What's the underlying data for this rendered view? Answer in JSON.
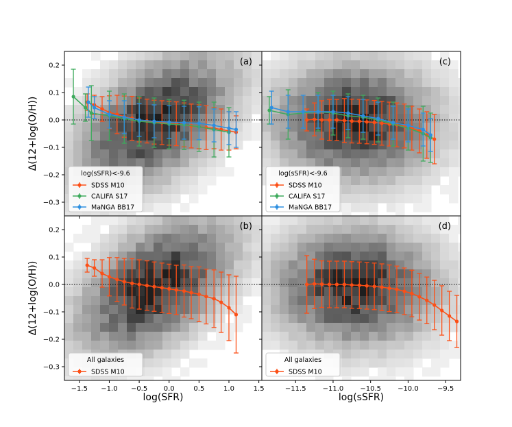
{
  "figure": {
    "ylabel": "Δ(12+log(O/H))",
    "xlabel_left": "log(SFR)",
    "xlabel_right": "log(sSFR)"
  },
  "colors": {
    "sdss": "#fc4f16",
    "califa": "#3daa5c",
    "manga": "#2d8fe0",
    "zero_line": "#000000"
  },
  "chart_data": [
    {
      "type": "scatter",
      "panel": "a",
      "panel_label": "(a)",
      "xlim": [
        -1.75,
        1.55
      ],
      "ylim": [
        -0.35,
        0.25
      ],
      "legend_title": "log(sSFR)<-9.6",
      "series": [
        {
          "name": "SDSS M10",
          "x": [
            -1.37,
            -1.25,
            -1.12,
            -1.0,
            -0.87,
            -0.75,
            -0.62,
            -0.5,
            -0.37,
            -0.25,
            -0.12,
            0.0,
            0.12,
            0.25,
            0.37,
            0.5,
            0.62,
            0.75,
            0.87,
            1.0,
            1.12
          ],
          "y": [
            0.065,
            0.055,
            0.04,
            0.028,
            0.02,
            0.012,
            0.006,
            0.0,
            -0.004,
            -0.008,
            -0.01,
            -0.012,
            -0.014,
            -0.018,
            -0.022,
            -0.025,
            -0.028,
            -0.03,
            -0.035,
            -0.04,
            -0.045
          ],
          "err": [
            0.03,
            0.035,
            0.045,
            0.06,
            0.07,
            0.075,
            0.08,
            0.08,
            0.08,
            0.08,
            0.08,
            0.08,
            0.08,
            0.08,
            0.08,
            0.08,
            0.08,
            0.075,
            0.075,
            0.07,
            0.06
          ]
        },
        {
          "name": "CALIFA S17",
          "x": [
            -1.6,
            -1.4,
            -1.3,
            -1.0,
            -0.75,
            -0.5,
            -0.25,
            0.0,
            0.25,
            0.5,
            0.75,
            1.0
          ],
          "y": [
            0.085,
            0.045,
            0.025,
            0.015,
            0.005,
            -0.005,
            -0.01,
            -0.015,
            -0.018,
            -0.025,
            -0.035,
            -0.045
          ],
          "err": [
            0.1,
            0.05,
            0.1,
            0.09,
            0.09,
            0.09,
            0.09,
            0.09,
            0.09,
            0.09,
            0.1,
            0.09
          ]
        },
        {
          "name": "MaNGA BB17",
          "x": [
            -1.35,
            -1.25,
            -1.0,
            -0.75,
            -0.5,
            -0.25,
            0.0,
            0.25,
            0.5,
            0.75,
            1.0,
            1.12
          ],
          "y": [
            0.065,
            0.045,
            0.02,
            0.01,
            0.0,
            -0.005,
            -0.008,
            -0.01,
            -0.012,
            -0.02,
            -0.03,
            -0.035
          ],
          "err": [
            0.055,
            0.04,
            0.05,
            0.06,
            0.06,
            0.06,
            0.06,
            0.06,
            0.06,
            0.06,
            0.06,
            0.065
          ]
        }
      ]
    },
    {
      "type": "scatter",
      "panel": "c",
      "panel_label": "(c)",
      "xlim": [
        -11.95,
        -9.3
      ],
      "ylim": [
        -0.35,
        0.25
      ],
      "legend_title": "log(sSFR)<-9.6",
      "series": [
        {
          "name": "SDSS M10",
          "x": [
            -11.35,
            -11.25,
            -11.15,
            -11.05,
            -10.95,
            -10.85,
            -10.75,
            -10.65,
            -10.55,
            -10.45,
            -10.35,
            -10.25,
            -10.15,
            -10.05,
            -9.95,
            -9.85,
            -9.75,
            -9.65
          ],
          "y": [
            0.0,
            0.002,
            0.0,
            0.0,
            0.0,
            -0.002,
            -0.004,
            -0.005,
            -0.007,
            -0.009,
            -0.012,
            -0.015,
            -0.018,
            -0.022,
            -0.03,
            -0.04,
            -0.055,
            -0.07
          ],
          "err": [
            0.04,
            0.06,
            0.07,
            0.075,
            0.075,
            0.08,
            0.08,
            0.08,
            0.08,
            0.08,
            0.08,
            0.08,
            0.08,
            0.08,
            0.08,
            0.08,
            0.085,
            0.09
          ]
        },
        {
          "name": "CALIFA S17",
          "x": [
            -11.85,
            -11.6,
            -11.2,
            -11.0,
            -10.8,
            -10.6,
            -10.4,
            -10.2,
            -10.0,
            -9.8,
            -9.7
          ],
          "y": [
            0.035,
            0.02,
            0.03,
            0.025,
            0.015,
            0.01,
            0.0,
            -0.015,
            -0.03,
            -0.05,
            -0.065
          ],
          "err": [
            0.05,
            0.09,
            0.07,
            0.08,
            0.08,
            0.08,
            0.08,
            0.08,
            0.08,
            0.1,
            0.09
          ]
        },
        {
          "name": "MaNGA BB17",
          "x": [
            -11.82,
            -11.6,
            -11.4,
            -11.2,
            -11.0,
            -10.8,
            -10.6,
            -10.4,
            -10.2,
            -10.0,
            -9.8,
            -9.7
          ],
          "y": [
            0.045,
            0.03,
            0.03,
            0.03,
            0.03,
            0.025,
            0.015,
            0.005,
            -0.01,
            -0.02,
            -0.035,
            -0.055
          ],
          "err": [
            0.06,
            0.06,
            0.06,
            0.06,
            0.06,
            0.06,
            0.06,
            0.06,
            0.06,
            0.06,
            0.06,
            0.06
          ]
        }
      ]
    },
    {
      "type": "scatter",
      "panel": "b",
      "panel_label": "(b)",
      "xlim": [
        -1.75,
        1.55
      ],
      "ylim": [
        -0.35,
        0.25
      ],
      "legend_title": "All galaxies",
      "series": [
        {
          "name": "SDSS M10",
          "x": [
            -1.37,
            -1.25,
            -1.12,
            -1.0,
            -0.87,
            -0.75,
            -0.62,
            -0.5,
            -0.37,
            -0.25,
            -0.12,
            0.0,
            0.12,
            0.25,
            0.37,
            0.5,
            0.62,
            0.75,
            0.87,
            1.0,
            1.12
          ],
          "y": [
            0.07,
            0.06,
            0.04,
            0.028,
            0.018,
            0.01,
            0.004,
            0.0,
            -0.004,
            -0.008,
            -0.012,
            -0.016,
            -0.02,
            -0.024,
            -0.03,
            -0.036,
            -0.044,
            -0.052,
            -0.065,
            -0.085,
            -0.11
          ],
          "err": [
            0.025,
            0.03,
            0.05,
            0.07,
            0.08,
            0.085,
            0.09,
            0.09,
            0.09,
            0.09,
            0.09,
            0.09,
            0.09,
            0.095,
            0.095,
            0.1,
            0.1,
            0.105,
            0.11,
            0.12,
            0.14
          ]
        }
      ]
    },
    {
      "type": "scatter",
      "panel": "d",
      "panel_label": "(d)",
      "xlim": [
        -11.95,
        -9.3
      ],
      "ylim": [
        -0.35,
        0.25
      ],
      "legend_title": "All galaxies",
      "series": [
        {
          "name": "SDSS M10",
          "x": [
            -11.35,
            -11.25,
            -11.15,
            -11.05,
            -10.95,
            -10.85,
            -10.75,
            -10.65,
            -10.55,
            -10.45,
            -10.35,
            -10.25,
            -10.15,
            -10.05,
            -9.95,
            -9.85,
            -9.75,
            -9.65,
            -9.55,
            -9.45,
            -9.35
          ],
          "y": [
            0.0,
            0.002,
            0.001,
            0.0,
            0.0,
            0.0,
            -0.002,
            -0.003,
            -0.005,
            -0.007,
            -0.01,
            -0.014,
            -0.018,
            -0.025,
            -0.033,
            -0.045,
            -0.058,
            -0.075,
            -0.095,
            -0.115,
            -0.135
          ],
          "err": [
            0.105,
            0.09,
            0.085,
            0.085,
            0.085,
            0.085,
            0.085,
            0.085,
            0.085,
            0.085,
            0.085,
            0.085,
            0.085,
            0.085,
            0.085,
            0.085,
            0.085,
            0.09,
            0.09,
            0.09,
            0.095
          ]
        }
      ]
    }
  ],
  "ticks": {
    "y": [
      "0.2",
      "0.1",
      "0.0",
      "−0.1",
      "−0.2",
      "−0.3"
    ],
    "x_left": [
      "−1.5",
      "−1.0",
      "−0.5",
      "0.0",
      "0.5",
      "1.0",
      "1.5"
    ],
    "x_right": [
      "−11.5",
      "−11.0",
      "−10.5",
      "−10.0",
      "−9.5"
    ]
  }
}
